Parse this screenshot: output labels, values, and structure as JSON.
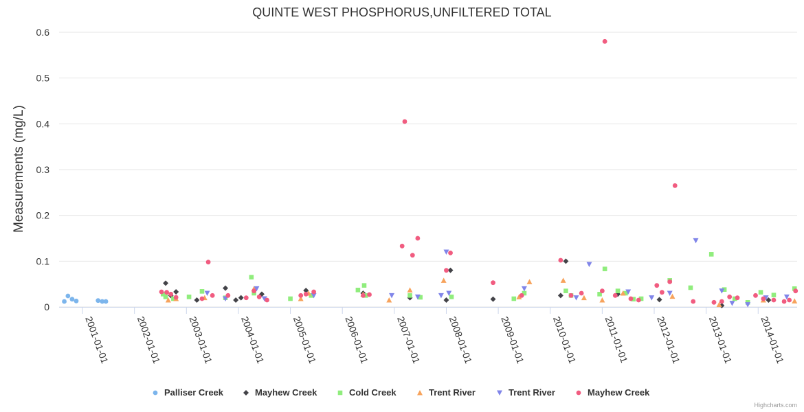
{
  "chart_data": {
    "type": "scatter",
    "title": "QUINTE WEST PHOSPHORUS,UNFILTERED TOTAL",
    "ylabel": "Measurements (mg/L)",
    "xlabel": "",
    "ylim": [
      0,
      0.6
    ],
    "yticks": [
      0,
      0.1,
      0.2,
      0.3,
      0.4,
      0.5,
      0.6
    ],
    "ytick_labels": [
      "0",
      "0.1",
      "0.2",
      "0.3",
      "0.4",
      "0.5",
      "0.6"
    ],
    "xlim": [
      2000.55,
      2014.75
    ],
    "xticks": [
      2001,
      2002,
      2003,
      2004,
      2005,
      2006,
      2007,
      2008,
      2009,
      2010,
      2011,
      2012,
      2013,
      2014
    ],
    "xtick_labels": [
      "2001-01-01",
      "2002-01-01",
      "2003-01-01",
      "2004-01-01",
      "2005-01-01",
      "2006-01-01",
      "2007-01-01",
      "2008-01-01",
      "2009-01-01",
      "2010-01-01",
      "2011-01-01",
      "2012-01-01",
      "2013-01-01",
      "2014-01-01"
    ],
    "series": [
      {
        "name": "Palliser Creek",
        "color": "#7cb5ec",
        "marker": "circle",
        "points": [
          [
            2000.65,
            0.012
          ],
          [
            2000.72,
            0.024
          ],
          [
            2000.8,
            0.017
          ],
          [
            2000.88,
            0.013
          ],
          [
            2001.3,
            0.014
          ],
          [
            2001.38,
            0.012
          ],
          [
            2001.45,
            0.012
          ]
        ]
      },
      {
        "name": "Mayhew Creek",
        "color": "#434348",
        "marker": "diamond",
        "points": [
          [
            2002.6,
            0.052
          ],
          [
            2002.7,
            0.025
          ],
          [
            2002.8,
            0.033
          ],
          [
            2003.2,
            0.015
          ],
          [
            2003.75,
            0.041
          ],
          [
            2003.95,
            0.015
          ],
          [
            2004.05,
            0.02
          ],
          [
            2004.45,
            0.028
          ],
          [
            2005.3,
            0.036
          ],
          [
            2006.4,
            0.03
          ],
          [
            2007.3,
            0.02
          ],
          [
            2008.0,
            0.015
          ],
          [
            2008.08,
            0.08
          ],
          [
            2008.9,
            0.017
          ],
          [
            2010.3,
            0.1
          ],
          [
            2010.2,
            0.025
          ],
          [
            2011.3,
            0.028
          ],
          [
            2012.1,
            0.016
          ],
          [
            2013.3,
            0.003
          ],
          [
            2014.2,
            0.015
          ]
        ]
      },
      {
        "name": "Cold Creek",
        "color": "#90ed7d",
        "marker": "square",
        "points": [
          [
            2002.55,
            0.028
          ],
          [
            2002.6,
            0.022
          ],
          [
            2002.75,
            0.018
          ],
          [
            2003.05,
            0.022
          ],
          [
            2003.3,
            0.034
          ],
          [
            2003.75,
            0.02
          ],
          [
            2004.25,
            0.065
          ],
          [
            2004.3,
            0.03
          ],
          [
            2005.0,
            0.018
          ],
          [
            2005.4,
            0.025
          ],
          [
            2006.3,
            0.037
          ],
          [
            2006.42,
            0.047
          ],
          [
            2006.45,
            0.025
          ],
          [
            2007.3,
            0.025
          ],
          [
            2007.5,
            0.021
          ],
          [
            2008.1,
            0.022
          ],
          [
            2009.3,
            0.018
          ],
          [
            2009.5,
            0.03
          ],
          [
            2010.3,
            0.035
          ],
          [
            2010.4,
            0.025
          ],
          [
            2010.95,
            0.028
          ],
          [
            2011.05,
            0.083
          ],
          [
            2011.3,
            0.035
          ],
          [
            2011.45,
            0.03
          ],
          [
            2011.6,
            0.017
          ],
          [
            2011.75,
            0.018
          ],
          [
            2012.3,
            0.058
          ],
          [
            2012.7,
            0.042
          ],
          [
            2013.1,
            0.115
          ],
          [
            2013.35,
            0.038
          ],
          [
            2013.55,
            0.018
          ],
          [
            2013.8,
            0.01
          ],
          [
            2014.05,
            0.032
          ],
          [
            2014.3,
            0.026
          ],
          [
            2014.7,
            0.04
          ]
        ]
      },
      {
        "name": "Trent River",
        "color": "#f7a35c",
        "marker": "triangle",
        "points": [
          [
            2002.65,
            0.015
          ],
          [
            2002.8,
            0.018
          ],
          [
            2003.35,
            0.02
          ],
          [
            2004.3,
            0.04
          ],
          [
            2005.2,
            0.018
          ],
          [
            2005.35,
            0.03
          ],
          [
            2006.4,
            0.028
          ],
          [
            2006.9,
            0.015
          ],
          [
            2007.3,
            0.037
          ],
          [
            2007.95,
            0.058
          ],
          [
            2009.4,
            0.022
          ],
          [
            2009.6,
            0.055
          ],
          [
            2010.25,
            0.058
          ],
          [
            2010.65,
            0.02
          ],
          [
            2011.0,
            0.015
          ],
          [
            2011.4,
            0.03
          ],
          [
            2012.35,
            0.023
          ],
          [
            2013.25,
            0.005
          ],
          [
            2014.1,
            0.015
          ],
          [
            2014.7,
            0.013
          ]
        ]
      },
      {
        "name": "Trent River",
        "color": "#8085e9",
        "marker": "triangle-down",
        "points": [
          [
            2003.4,
            0.03
          ],
          [
            2003.75,
            0.018
          ],
          [
            2004.35,
            0.04
          ],
          [
            2004.5,
            0.018
          ],
          [
            2005.45,
            0.025
          ],
          [
            2006.95,
            0.025
          ],
          [
            2007.45,
            0.022
          ],
          [
            2007.9,
            0.025
          ],
          [
            2008.0,
            0.12
          ],
          [
            2008.05,
            0.03
          ],
          [
            2009.5,
            0.04
          ],
          [
            2010.5,
            0.02
          ],
          [
            2010.75,
            0.093
          ],
          [
            2011.5,
            0.033
          ],
          [
            2011.95,
            0.02
          ],
          [
            2012.3,
            0.03
          ],
          [
            2012.8,
            0.145
          ],
          [
            2013.3,
            0.035
          ],
          [
            2013.5,
            0.008
          ],
          [
            2013.8,
            0.005
          ],
          [
            2014.15,
            0.02
          ],
          [
            2014.55,
            0.022
          ]
        ]
      },
      {
        "name": "Mayhew Creek",
        "color": "#f15c80",
        "marker": "circle",
        "points": [
          [
            2002.52,
            0.033
          ],
          [
            2002.62,
            0.032
          ],
          [
            2002.7,
            0.028
          ],
          [
            2002.8,
            0.021
          ],
          [
            2003.3,
            0.018
          ],
          [
            2003.42,
            0.098
          ],
          [
            2003.5,
            0.025
          ],
          [
            2003.8,
            0.025
          ],
          [
            2004.15,
            0.02
          ],
          [
            2004.3,
            0.035
          ],
          [
            2004.4,
            0.022
          ],
          [
            2004.55,
            0.015
          ],
          [
            2005.2,
            0.025
          ],
          [
            2005.3,
            0.028
          ],
          [
            2005.45,
            0.033
          ],
          [
            2006.4,
            0.025
          ],
          [
            2006.52,
            0.027
          ],
          [
            2007.15,
            0.133
          ],
          [
            2007.2,
            0.405
          ],
          [
            2007.35,
            0.113
          ],
          [
            2007.45,
            0.15
          ],
          [
            2008.0,
            0.08
          ],
          [
            2008.08,
            0.118
          ],
          [
            2008.9,
            0.053
          ],
          [
            2009.45,
            0.025
          ],
          [
            2010.2,
            0.102
          ],
          [
            2010.4,
            0.025
          ],
          [
            2010.6,
            0.03
          ],
          [
            2011.05,
            0.58
          ],
          [
            2011.0,
            0.035
          ],
          [
            2011.25,
            0.025
          ],
          [
            2011.55,
            0.018
          ],
          [
            2011.7,
            0.015
          ],
          [
            2012.05,
            0.047
          ],
          [
            2012.15,
            0.032
          ],
          [
            2012.3,
            0.055
          ],
          [
            2012.4,
            0.265
          ],
          [
            2012.75,
            0.012
          ],
          [
            2013.15,
            0.01
          ],
          [
            2013.3,
            0.012
          ],
          [
            2013.45,
            0.022
          ],
          [
            2013.6,
            0.02
          ],
          [
            2013.95,
            0.025
          ],
          [
            2014.1,
            0.018
          ],
          [
            2014.3,
            0.015
          ],
          [
            2014.5,
            0.012
          ],
          [
            2014.6,
            0.015
          ],
          [
            2014.72,
            0.035
          ]
        ]
      }
    ]
  },
  "credits": "Highcharts.com"
}
